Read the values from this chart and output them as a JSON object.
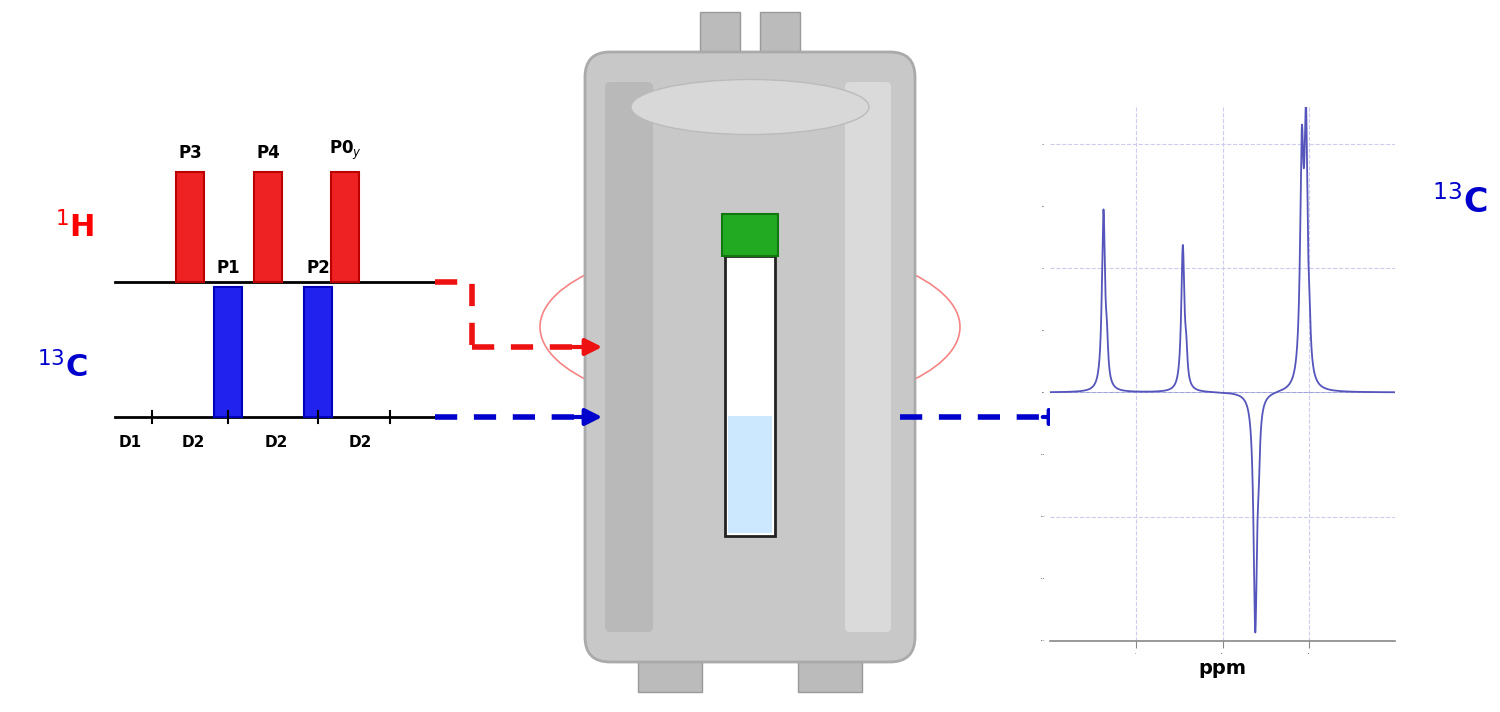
{
  "bg_color": "#ffffff",
  "h1_color": "#ff0000",
  "c13_color": "#0000cc",
  "pulse_label_h1": [
    "P3",
    "P4",
    "P0y"
  ],
  "pulse_label_c13": [
    "P1",
    "P2"
  ],
  "delay_labels": [
    "D1",
    "D2",
    "D2",
    "D2"
  ],
  "red_dashed_color": "#ee1111",
  "blue_dashed_color": "#0000cc",
  "spectrum_color": "#5555bb",
  "grid_color": "#ccccee",
  "ppm_label": "ppm",
  "magnet_body_color": "#c8c8c8",
  "magnet_edge_color": "#aaaaaa",
  "magnet_light_color": "#e2e2e2",
  "magnet_dark_color": "#b0b0b0",
  "tube_color": "#ffffff",
  "liquid_color": "#cce8ff",
  "green_cap_color": "#22aa22",
  "pipe_color": "#bbbbbb"
}
